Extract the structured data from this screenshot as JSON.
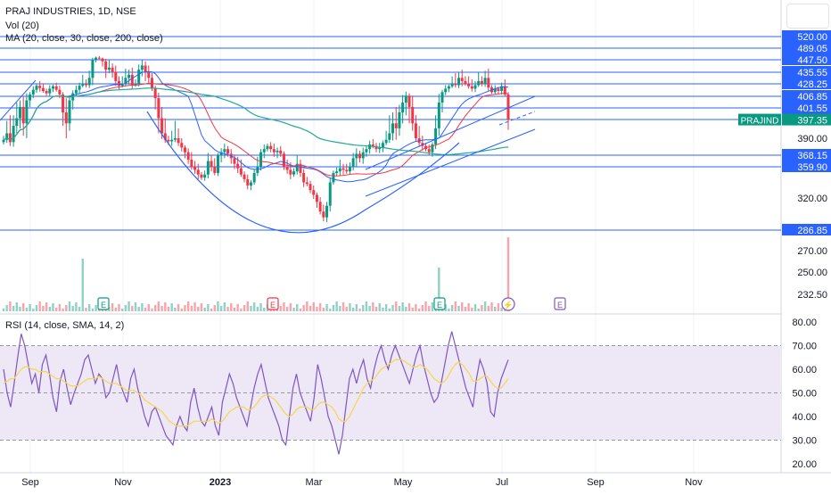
{
  "header": {
    "title": "PRAJ INDUSTRIES, 1D, NSE",
    "vol_label": "Vol (20)",
    "ma_label": "MA (20, close, 30, close, 200, close)",
    "rsi_label": "RSI (14, close, SMA, 14, 2)"
  },
  "colors": {
    "accent": "#2962ff",
    "up": "#089981",
    "down": "#f23645",
    "rsi": "#7e57c2",
    "rsi_ma": "#f5d84a",
    "ma20": "#2962ff",
    "ma30": "#f23645",
    "ma200": "#22ab94",
    "rsi_band": "#ede7f6",
    "grid": "#f0f3fa"
  },
  "chart_data": [
    {
      "type": "candlestick",
      "name": "price",
      "symbol_badge": "PRAJIND",
      "last_price": 397.35,
      "price_axis_labels": [
        "520.00",
        "489.05",
        "447.50",
        "435.55",
        "428.25",
        "406.85",
        "401.55",
        "397.55",
        "390.00",
        "368.15",
        "359.90",
        "320.00",
        "286.85",
        "270.00",
        "250.00",
        "232.50"
      ],
      "horizontal_levels": [
        520.0,
        489.05,
        447.5,
        435.55,
        428.25,
        406.85,
        401.55,
        397.55,
        368.15,
        359.9,
        286.85
      ],
      "x_ticks": [
        "Sep",
        "Nov",
        "2023",
        "Mar",
        "May",
        "Jul",
        "Sep",
        "Nov"
      ],
      "ylim": [
        225,
        525
      ],
      "closes": [
        388,
        392,
        385,
        395,
        398,
        402,
        396,
        405,
        410,
        418,
        425,
        421,
        416,
        412,
        420,
        424,
        418,
        410,
        400,
        396,
        405,
        412,
        418,
        425,
        428,
        426,
        432,
        448,
        455,
        452,
        446,
        438,
        440,
        436,
        430,
        425,
        428,
        432,
        434,
        426,
        428,
        438,
        442,
        436,
        432,
        420,
        406,
        398,
        392,
        388,
        386,
        388,
        390,
        384,
        378,
        372,
        365,
        360,
        356,
        350,
        346,
        350,
        364,
        360,
        352,
        368,
        372,
        376,
        370,
        366,
        362,
        358,
        350,
        344,
        336,
        340,
        352,
        360,
        372,
        376,
        380,
        376,
        372,
        374,
        370,
        360,
        356,
        350,
        354,
        362,
        352,
        340,
        338,
        330,
        324,
        316,
        306,
        300,
        312,
        340,
        352,
        354,
        358,
        356,
        354,
        360,
        366,
        370,
        366,
        372,
        376,
        382,
        380,
        376,
        378,
        384,
        388,
        392,
        396,
        394,
        400,
        404,
        408,
        402,
        396,
        390,
        384,
        380,
        376,
        372,
        382,
        394,
        404,
        414,
        420,
        424,
        428,
        426,
        432,
        430,
        428,
        424,
        420,
        426,
        430,
        428,
        432,
        422,
        414,
        420,
        416,
        424,
        410,
        397.35
      ],
      "volume_events": [
        "E",
        "E",
        "E",
        "⚡",
        "E"
      ]
    },
    {
      "type": "line",
      "name": "rsi",
      "ylim": [
        15,
        82
      ],
      "y_ticks": [
        "80.00",
        "70.00",
        "60.00",
        "50.00",
        "40.00",
        "30.00",
        "20.00"
      ],
      "band": [
        30,
        70
      ],
      "midline": 50,
      "values": [
        60,
        50,
        44,
        54,
        65,
        75,
        70,
        62,
        54,
        58,
        50,
        62,
        66,
        58,
        48,
        42,
        55,
        60,
        52,
        45,
        50,
        54,
        58,
        64,
        66,
        60,
        54,
        58,
        56,
        48,
        50,
        56,
        62,
        54,
        50,
        46,
        56,
        60,
        52,
        46,
        40,
        36,
        42,
        44,
        40,
        36,
        32,
        30,
        28,
        36,
        40,
        36,
        34,
        46,
        52,
        44,
        38,
        36,
        40,
        44,
        36,
        32,
        46,
        52,
        58,
        54,
        48,
        44,
        40,
        36,
        44,
        52,
        58,
        62,
        55,
        48,
        44,
        40,
        36,
        30,
        28,
        40,
        52,
        58,
        50,
        46,
        42,
        38,
        48,
        62,
        56,
        48,
        40,
        36,
        30,
        24,
        32,
        44,
        56,
        60,
        54,
        60,
        64,
        56,
        52,
        60,
        66,
        70,
        64,
        60,
        66,
        70,
        66,
        62,
        58,
        54,
        60,
        66,
        70,
        62,
        56,
        50,
        46,
        48,
        54,
        62,
        70,
        76,
        70,
        64,
        58,
        52,
        48,
        44,
        56,
        64,
        60,
        54,
        42,
        40,
        50,
        56,
        60,
        64
      ],
      "sma_values": [
        54,
        55,
        56,
        56,
        58,
        60,
        61,
        61,
        60,
        60,
        59,
        59,
        59,
        58,
        57,
        56,
        56,
        55,
        54,
        53,
        53,
        53,
        54,
        55,
        56,
        56,
        56,
        57,
        56,
        55,
        54,
        54,
        54,
        53,
        52,
        51,
        51,
        51,
        50,
        49,
        47,
        46,
        45,
        44,
        43,
        42,
        40,
        38,
        37,
        36,
        36,
        36,
        36,
        37,
        38,
        38,
        38,
        38,
        38,
        39,
        38,
        37,
        38,
        40,
        42,
        43,
        44,
        44,
        44,
        43,
        43,
        44,
        46,
        48,
        49,
        49,
        48,
        47,
        45,
        43,
        41,
        40,
        41,
        43,
        44,
        44,
        44,
        43,
        43,
        45,
        46,
        46,
        45,
        44,
        42,
        39,
        38,
        38,
        40,
        43,
        46,
        49,
        52,
        54,
        55,
        56,
        58,
        60,
        61,
        62,
        63,
        64,
        64,
        64,
        63,
        62,
        61,
        61,
        62,
        61,
        60,
        58,
        56,
        55,
        54,
        55,
        57,
        60,
        62,
        63,
        62,
        60,
        58,
        55,
        55,
        56,
        57,
        57,
        55,
        53,
        52,
        52,
        54,
        56
      ]
    }
  ]
}
